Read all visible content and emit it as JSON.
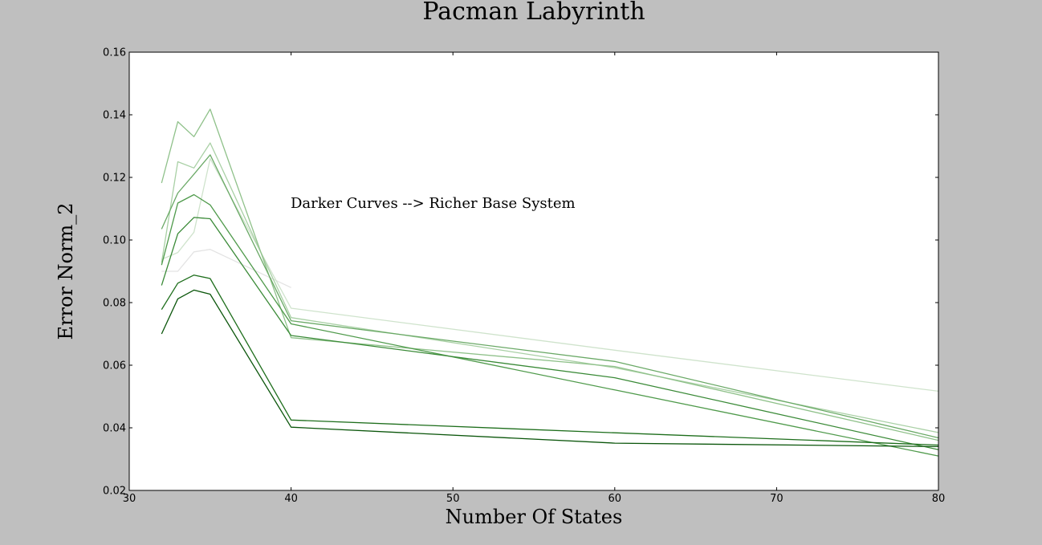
{
  "chart_data": {
    "type": "line",
    "title": "Pacman Labyrinth",
    "xlabel": "Number Of States",
    "ylabel": "Error Norm_2",
    "xlim": [
      30,
      80
    ],
    "ylim": [
      0.02,
      0.16
    ],
    "xticks": [
      "30",
      "40",
      "50",
      "60",
      "70",
      "80"
    ],
    "yticks": [
      "0.02",
      "0.04",
      "0.06",
      "0.08",
      "0.10",
      "0.12",
      "0.14",
      "0.16"
    ],
    "grid": false,
    "legend": "none",
    "annotation": "Darker Curves --> Richer Base System",
    "x": [
      32,
      33,
      34,
      35,
      40,
      60,
      80
    ],
    "series": [
      {
        "color": "#e3e3e3",
        "values": [
          0.09,
          0.09,
          0.0962,
          0.097,
          0.0848,
          null,
          null
        ]
      },
      {
        "color": "#cfe3cc",
        "values": [
          0.0938,
          0.096,
          0.1025,
          0.126,
          0.0782,
          0.0648,
          0.0517
        ]
      },
      {
        "color": "#a9d0a5",
        "values": [
          0.0928,
          0.125,
          0.123,
          0.131,
          0.0752,
          0.0592,
          0.0385
        ]
      },
      {
        "color": "#8fc18a",
        "values": [
          0.1182,
          0.1378,
          0.133,
          0.1418,
          0.0688,
          0.0596,
          0.036
        ]
      },
      {
        "color": "#6aa966",
        "values": [
          0.1035,
          0.115,
          0.121,
          0.1272,
          0.0742,
          0.0612,
          0.0368
        ]
      },
      {
        "color": "#4f9a4b",
        "values": [
          0.092,
          0.1118,
          0.1145,
          0.1112,
          0.0732,
          0.0521,
          0.031
        ]
      },
      {
        "color": "#3a8a37",
        "values": [
          0.0855,
          0.102,
          0.1072,
          0.1068,
          0.0695,
          0.056,
          0.033
        ]
      },
      {
        "color": "#1e6e1c",
        "values": [
          0.0778,
          0.0862,
          0.0888,
          0.0877,
          0.0425,
          0.0384,
          0.0345
        ]
      },
      {
        "color": "#0b560b",
        "values": [
          0.07,
          0.0812,
          0.084,
          0.0827,
          0.0402,
          0.0351,
          0.034
        ]
      }
    ]
  }
}
